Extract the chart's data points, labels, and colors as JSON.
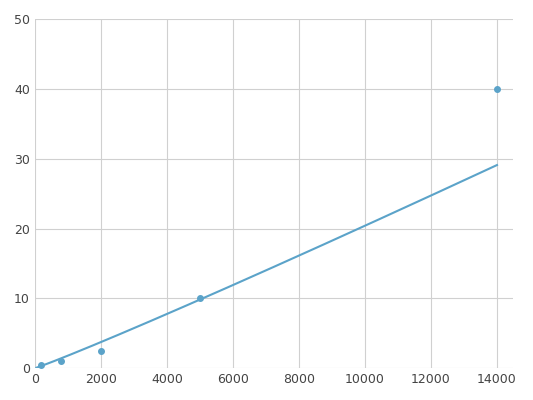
{
  "x": [
    200,
    800,
    2000,
    5000,
    14000
  ],
  "y": [
    0.5,
    1.0,
    2.5,
    10.0,
    40.0
  ],
  "line_color": "#5ba3c9",
  "marker_color": "#5ba3c9",
  "marker_size": 4,
  "line_width": 1.5,
  "xlim": [
    0,
    14500
  ],
  "ylim": [
    0,
    50
  ],
  "xticks": [
    0,
    2000,
    4000,
    6000,
    8000,
    10000,
    12000,
    14000
  ],
  "yticks": [
    0,
    10,
    20,
    30,
    40,
    50
  ],
  "grid_color": "#d0d0d0",
  "background_color": "#ffffff",
  "fig_background": "#ffffff"
}
